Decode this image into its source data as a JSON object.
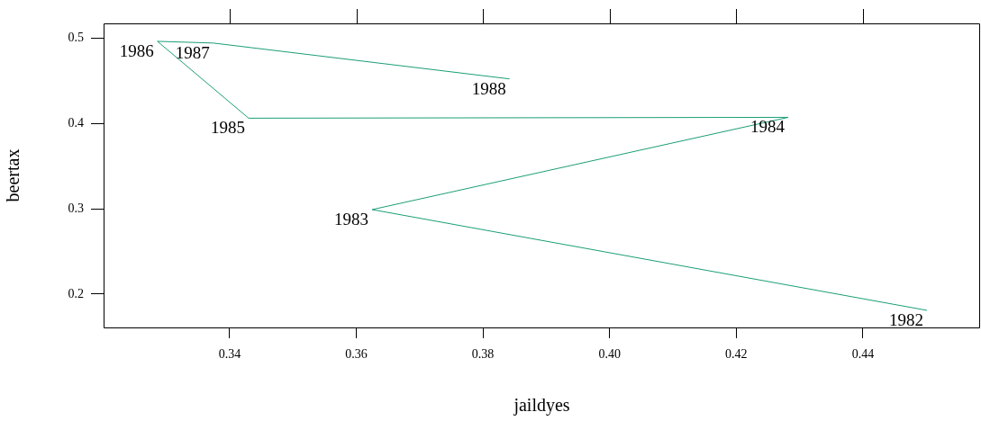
{
  "chart_data": {
    "type": "line",
    "xlabel": "jaildyes",
    "ylabel": "beertax",
    "marker": "none",
    "grid": false,
    "legend": false,
    "x": [
      0.4501,
      0.3625,
      0.4282,
      0.343,
      0.3286,
      0.3374,
      0.3842
    ],
    "series": [
      {
        "color": "#1b9e77",
        "values": [
          0.181,
          0.299,
          0.407,
          0.406,
          0.496,
          0.494,
          0.452
        ]
      }
    ],
    "xlim": [
      0.3201,
      0.4585
    ],
    "xticks": [
      0.34,
      0.36,
      0.38,
      {
        "value": 0.4,
        "label": "0.40"
      },
      0.42,
      0.44
    ],
    "ylim": [
      0.161,
      0.517
    ],
    "yticks": [
      0.2,
      0.3,
      0.4,
      0.5
    ],
    "annotations": [
      {
        "text": "1982",
        "x": 0.4501,
        "y": 0.181
      },
      {
        "text": "1983",
        "x": 0.3625,
        "y": 0.299
      },
      {
        "text": "1984",
        "x": 0.4282,
        "y": 0.407
      },
      {
        "text": "1985",
        "x": 0.343,
        "y": 0.406
      },
      {
        "text": "1986",
        "x": 0.3286,
        "y": 0.496
      },
      {
        "text": "1987",
        "x": 0.3374,
        "y": 0.494
      },
      {
        "text": "1988",
        "x": 0.3842,
        "y": 0.452
      }
    ]
  }
}
